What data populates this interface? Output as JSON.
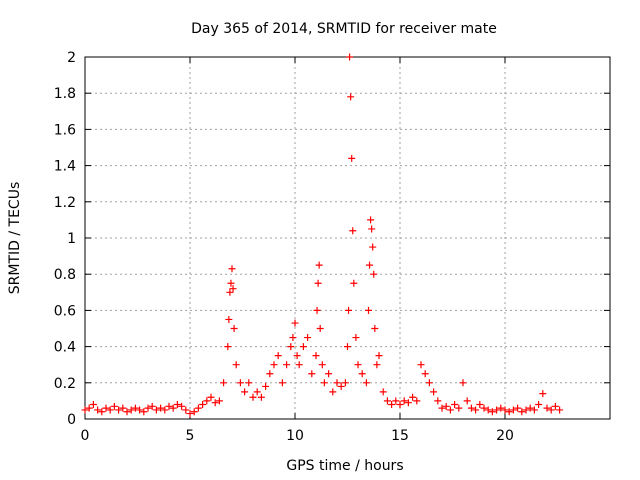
{
  "chart_data": {
    "type": "scatter",
    "title": "Day 365 of 2014, SRMTID for receiver mate",
    "xlabel": "GPS time / hours",
    "ylabel": "SRMTID / TECUs",
    "xlim": [
      0,
      25
    ],
    "ylim": [
      0,
      2
    ],
    "xticks": [
      0,
      5,
      10,
      15,
      20
    ],
    "yticks": [
      0,
      0.2,
      0.4,
      0.6,
      0.8,
      1,
      1.2,
      1.4,
      1.6,
      1.8,
      2
    ],
    "grid": true,
    "marker": "plus",
    "colors": {
      "points": "#ff0000",
      "axes": "#000000",
      "grid": "#a0a0a0"
    },
    "series": [
      {
        "x": [
          0.0,
          0.2,
          0.4,
          0.6,
          0.8,
          1.0,
          1.2,
          1.4,
          1.6,
          1.8,
          2.0,
          2.2,
          2.4,
          2.6,
          2.8,
          3.0,
          3.2,
          3.4,
          3.6,
          3.8,
          4.0,
          4.2,
          4.4,
          4.6,
          4.8,
          5.0,
          5.2,
          5.4,
          5.6,
          5.8,
          6.0,
          6.2,
          6.4,
          6.6,
          6.8,
          6.85,
          6.9,
          6.95,
          7.0,
          7.05,
          7.1,
          7.2,
          7.4,
          7.6,
          7.8,
          8.0,
          8.2,
          8.4,
          8.6,
          8.8,
          9.0,
          9.2,
          9.4,
          9.6,
          9.8,
          9.9,
          10.0,
          10.1,
          10.2,
          10.4,
          10.6,
          10.8,
          11.0,
          11.05,
          11.1,
          11.15,
          11.2,
          11.3,
          11.4,
          11.6,
          11.8,
          12.0,
          12.2,
          12.4,
          12.5,
          12.55,
          12.6,
          12.65,
          12.7,
          12.75,
          12.8,
          12.9,
          13.0,
          13.2,
          13.4,
          13.5,
          13.55,
          13.6,
          13.65,
          13.7,
          13.75,
          13.8,
          13.9,
          14.0,
          14.2,
          14.4,
          14.6,
          14.8,
          15.0,
          15.2,
          15.4,
          15.6,
          15.8,
          16.0,
          16.2,
          16.4,
          16.6,
          16.8,
          17.0,
          17.2,
          17.4,
          17.6,
          17.8,
          18.0,
          18.2,
          18.4,
          18.6,
          18.8,
          19.0,
          19.2,
          19.4,
          19.6,
          19.8,
          20.0,
          20.2,
          20.4,
          20.6,
          20.8,
          21.0,
          21.2,
          21.4,
          21.6,
          21.8,
          22.0,
          22.2,
          22.4,
          22.6
        ],
        "y": [
          0.05,
          0.06,
          0.08,
          0.05,
          0.04,
          0.06,
          0.05,
          0.07,
          0.05,
          0.06,
          0.04,
          0.05,
          0.06,
          0.05,
          0.04,
          0.06,
          0.07,
          0.05,
          0.06,
          0.05,
          0.07,
          0.06,
          0.08,
          0.07,
          0.05,
          0.03,
          0.04,
          0.06,
          0.08,
          0.1,
          0.12,
          0.09,
          0.1,
          0.2,
          0.4,
          0.55,
          0.7,
          0.75,
          0.83,
          0.72,
          0.5,
          0.3,
          0.2,
          0.15,
          0.2,
          0.12,
          0.15,
          0.12,
          0.18,
          0.25,
          0.3,
          0.35,
          0.2,
          0.3,
          0.4,
          0.45,
          0.53,
          0.35,
          0.3,
          0.4,
          0.45,
          0.25,
          0.35,
          0.6,
          0.75,
          0.85,
          0.5,
          0.3,
          0.2,
          0.25,
          0.15,
          0.2,
          0.18,
          0.2,
          0.4,
          0.6,
          2.0,
          1.78,
          1.44,
          1.04,
          0.75,
          0.45,
          0.3,
          0.25,
          0.2,
          0.6,
          0.85,
          1.1,
          1.05,
          0.95,
          0.8,
          0.5,
          0.3,
          0.35,
          0.15,
          0.1,
          0.08,
          0.1,
          0.08,
          0.1,
          0.09,
          0.12,
          0.1,
          0.3,
          0.25,
          0.2,
          0.15,
          0.1,
          0.06,
          0.07,
          0.05,
          0.08,
          0.06,
          0.2,
          0.1,
          0.06,
          0.05,
          0.08,
          0.06,
          0.05,
          0.04,
          0.05,
          0.06,
          0.05,
          0.04,
          0.05,
          0.06,
          0.04,
          0.05,
          0.06,
          0.05,
          0.08,
          0.14,
          0.06,
          0.05,
          0.07,
          0.05
        ]
      }
    ]
  }
}
